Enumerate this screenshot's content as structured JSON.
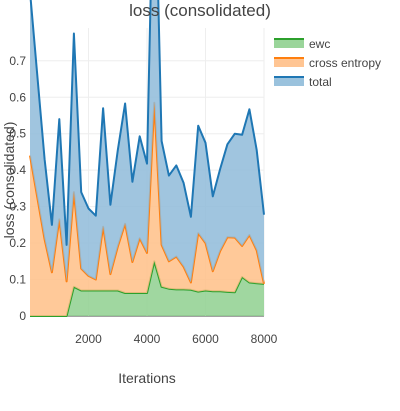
{
  "chart_data": {
    "type": "area",
    "title": "loss (consolidated)",
    "xlabel": "Iterations",
    "ylabel": "loss (consolidated)",
    "xlim": [
      0,
      8000
    ],
    "ylim": [
      0,
      0.79
    ],
    "x_ticks": [
      2000,
      4000,
      6000,
      8000
    ],
    "x_tick_labels": [
      "2000",
      "4000",
      "6000",
      "8000"
    ],
    "y_ticks": [
      0,
      0.1,
      0.2,
      0.3,
      0.4,
      0.5,
      0.6,
      0.7
    ],
    "y_tick_labels": [
      "0",
      "0.1",
      "0.2",
      "0.3",
      "0.4",
      "0.5",
      "0.6",
      "0.7"
    ],
    "grid": true,
    "legend_position": "top-right",
    "stacked": true,
    "x": [
      0,
      500,
      750,
      1000,
      1250,
      1500,
      1750,
      2000,
      2250,
      2500,
      2750,
      3000,
      3250,
      3500,
      3750,
      4000,
      4250,
      4500,
      4750,
      5000,
      5250,
      5500,
      5750,
      6000,
      6250,
      6500,
      6750,
      7000,
      7250,
      7500,
      7750,
      8000
    ],
    "series": [
      {
        "name": "ewc",
        "color": "#2ca02c",
        "fill": "#8fd08f",
        "values": [
          0,
          0,
          0,
          0,
          0,
          0.08,
          0.07,
          0.07,
          0.07,
          0.07,
          0.07,
          0.07,
          0.063,
          0.063,
          0.063,
          0.063,
          0.15,
          0.08,
          0.075,
          0.073,
          0.073,
          0.072,
          0.067,
          0.07,
          0.068,
          0.068,
          0.066,
          0.065,
          0.107,
          0.092,
          0.09,
          0.088
        ]
      },
      {
        "name": "cross entropy",
        "color": "#ff7f0e",
        "fill": "#ffbf87",
        "values": [
          0.44,
          0.21,
          0.12,
          0.265,
          0.095,
          0.26,
          0.06,
          0.04,
          0.03,
          0.175,
          0.045,
          0.12,
          0.19,
          0.085,
          0.15,
          0.11,
          0.435,
          0.115,
          0.075,
          0.09,
          0.062,
          0.02,
          0.16,
          0.13,
          0.055,
          0.11,
          0.15,
          0.15,
          0.085,
          0.13,
          0.09,
          0
        ]
      },
      {
        "name": "total",
        "color": "#1f77b4",
        "fill": "#8fbbd9",
        "values": [
          0.45,
          0.22,
          0.13,
          0.275,
          0.1,
          0.435,
          0.21,
          0.185,
          0.175,
          0.325,
          0.19,
          0.265,
          0.33,
          0.22,
          0.28,
          0.245,
          0.75,
          0.285,
          0.235,
          0.25,
          0.23,
          0.18,
          0.295,
          0.275,
          0.205,
          0.225,
          0.255,
          0.285,
          0.305,
          0.345,
          0.275,
          0.19
        ]
      }
    ]
  }
}
